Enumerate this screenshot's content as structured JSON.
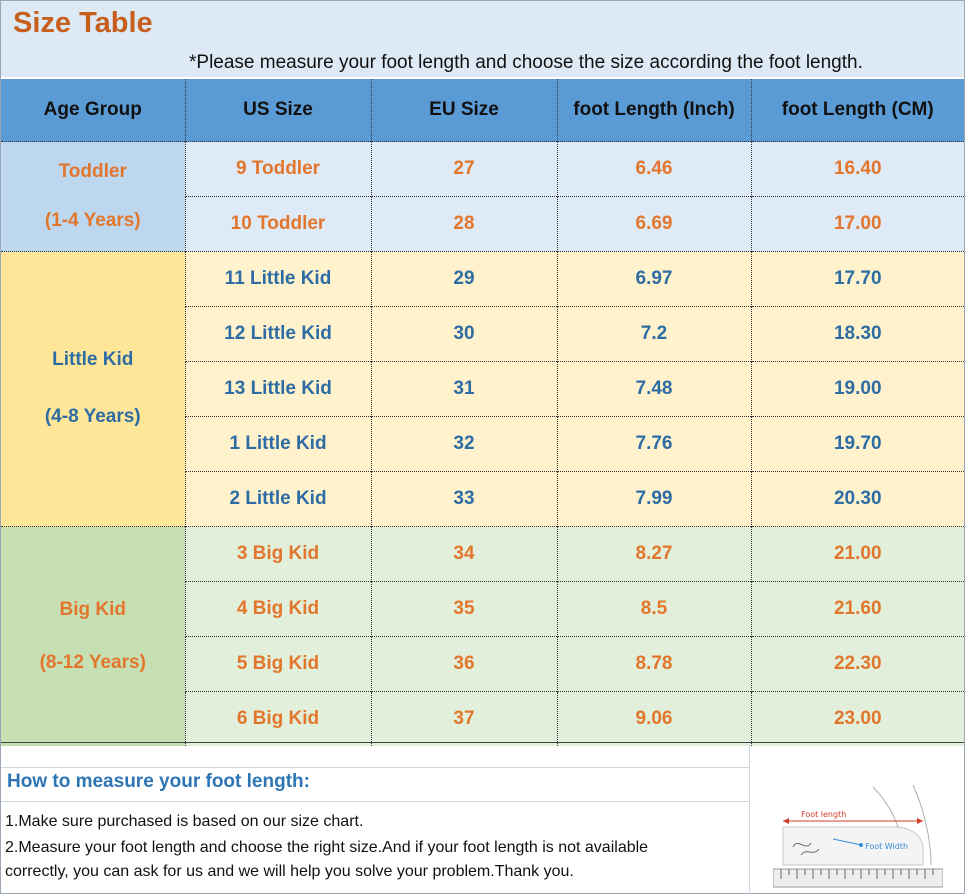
{
  "title": "Size Table",
  "note": "*Please measure your foot length and choose the size according the foot length.",
  "table": {
    "headers": [
      "Age Group",
      "US Size",
      "EU Size",
      "foot Length (Inch)",
      "foot Length (CM)"
    ],
    "groups": [
      {
        "name": "Toddler",
        "range": "(1-4 Years)"
      },
      {
        "name": "Little Kid",
        "range": "(4-8 Years)"
      },
      {
        "name": "Big Kid",
        "range": "(8-12 Years)"
      }
    ],
    "rows": [
      [
        "9 Toddler",
        "27",
        "6.46",
        "16.40"
      ],
      [
        "10 Toddler",
        "28",
        "6.69",
        "17.00"
      ],
      [
        "11 Little Kid",
        "29",
        "6.97",
        "17.70"
      ],
      [
        "12 Little Kid",
        "30",
        "7.2",
        "18.30"
      ],
      [
        "13 Little Kid",
        "31",
        "7.48",
        "19.00"
      ],
      [
        "1 Little Kid",
        "32",
        "7.76",
        "19.70"
      ],
      [
        "2 Little Kid",
        "33",
        "7.99",
        "20.30"
      ],
      [
        "3 Big Kid",
        "34",
        "8.27",
        "21.00"
      ],
      [
        "4 Big Kid",
        "35",
        "8.5",
        "21.60"
      ],
      [
        "5 Big Kid",
        "36",
        "8.78",
        "22.30"
      ],
      [
        "6 Big Kid",
        "37",
        "9.06",
        "23.00"
      ]
    ]
  },
  "howto": {
    "heading": "How to measure your foot length:",
    "step1": "1.Make sure purchased is based on our size chart.",
    "step2": "2.Measure your foot length and choose the right size.And if your foot length is not available",
    "step3": "correctly, you can ask for us and we will help you solve your problem.Thank you."
  },
  "diagram": {
    "foot_length_label": "Foot length",
    "foot_width_label": "Foot Width"
  },
  "colors": {
    "title": "#c75f1c",
    "header_bg": "#5b9bd5",
    "orange_text": "#e2762d",
    "blue_text": "#2e6da4"
  }
}
